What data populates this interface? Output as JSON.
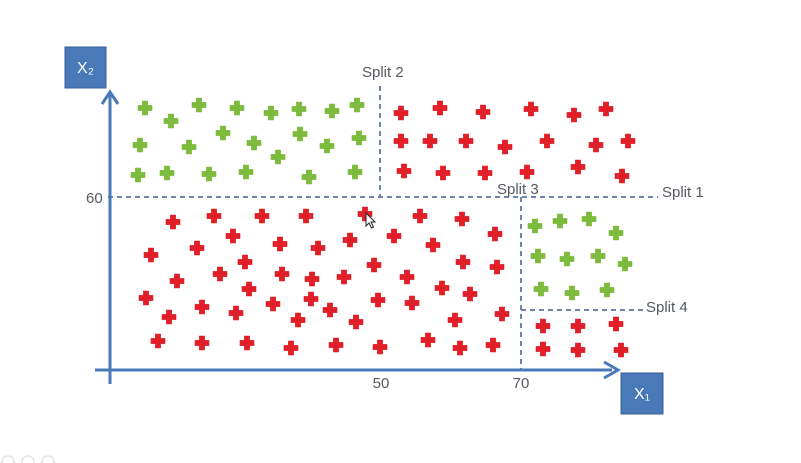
{
  "axes": {
    "x_label": "X₁",
    "y_label": "X₂",
    "x_ticks": [
      "50",
      "70"
    ],
    "y_ticks": [
      "60"
    ]
  },
  "splits": {
    "split1": "Split 1",
    "split2": "Split 2",
    "split3": "Split 3",
    "split4": "Split 4"
  },
  "colors": {
    "positive_class": "#7dbb3c",
    "negative_class": "#e01f28",
    "axis": "#4a79b8",
    "axis_box": "#4a79b8",
    "split_line": "#6f84a8"
  },
  "chart_data": {
    "type": "scatter",
    "x_split_values": [
      50,
      70
    ],
    "y_split_values": [
      60
    ],
    "series": [
      {
        "marker": "plus",
        "color": "#7dbb3c",
        "points": [
          [
            145,
            108
          ],
          [
            199,
            105
          ],
          [
            237,
            108
          ],
          [
            271,
            113
          ],
          [
            299,
            109
          ],
          [
            332,
            111
          ],
          [
            357,
            105
          ],
          [
            171,
            121
          ],
          [
            223,
            133
          ],
          [
            300,
            134
          ],
          [
            327,
            146
          ],
          [
            359,
            138
          ],
          [
            140,
            145
          ],
          [
            189,
            147
          ],
          [
            254,
            143
          ],
          [
            278,
            157
          ],
          [
            138,
            175
          ],
          [
            167,
            173
          ],
          [
            209,
            174
          ],
          [
            246,
            172
          ],
          [
            309,
            177
          ],
          [
            355,
            172
          ],
          [
            535,
            226
          ],
          [
            560,
            221
          ],
          [
            589,
            219
          ],
          [
            616,
            233
          ],
          [
            538,
            256
          ],
          [
            567,
            259
          ],
          [
            598,
            256
          ],
          [
            625,
            264
          ],
          [
            541,
            289
          ],
          [
            572,
            293
          ],
          [
            607,
            290
          ]
        ]
      },
      {
        "marker": "plus",
        "color": "#e01f28",
        "points": [
          [
            401,
            113
          ],
          [
            440,
            108
          ],
          [
            483,
            112
          ],
          [
            531,
            109
          ],
          [
            574,
            115
          ],
          [
            606,
            109
          ],
          [
            401,
            141
          ],
          [
            430,
            141
          ],
          [
            466,
            141
          ],
          [
            505,
            147
          ],
          [
            547,
            141
          ],
          [
            596,
            145
          ],
          [
            628,
            141
          ],
          [
            404,
            171
          ],
          [
            443,
            173
          ],
          [
            485,
            173
          ],
          [
            527,
            172
          ],
          [
            578,
            167
          ],
          [
            622,
            176
          ],
          [
            173,
            222
          ],
          [
            214,
            216
          ],
          [
            262,
            216
          ],
          [
            306,
            216
          ],
          [
            365,
            214
          ],
          [
            420,
            216
          ],
          [
            462,
            219
          ],
          [
            495,
            234
          ],
          [
            233,
            236
          ],
          [
            280,
            244
          ],
          [
            318,
            248
          ],
          [
            350,
            240
          ],
          [
            394,
            236
          ],
          [
            433,
            245
          ],
          [
            151,
            255
          ],
          [
            197,
            248
          ],
          [
            245,
            262
          ],
          [
            374,
            265
          ],
          [
            463,
            262
          ],
          [
            497,
            267
          ],
          [
            177,
            281
          ],
          [
            220,
            274
          ],
          [
            282,
            274
          ],
          [
            312,
            279
          ],
          [
            344,
            277
          ],
          [
            407,
            277
          ],
          [
            442,
            288
          ],
          [
            470,
            294
          ],
          [
            146,
            298
          ],
          [
            202,
            307
          ],
          [
            249,
            289
          ],
          [
            273,
            304
          ],
          [
            311,
            299
          ],
          [
            378,
            300
          ],
          [
            412,
            303
          ],
          [
            502,
            314
          ],
          [
            169,
            317
          ],
          [
            236,
            313
          ],
          [
            298,
            320
          ],
          [
            330,
            310
          ],
          [
            356,
            322
          ],
          [
            455,
            320
          ],
          [
            158,
            341
          ],
          [
            202,
            343
          ],
          [
            247,
            343
          ],
          [
            291,
            348
          ],
          [
            336,
            345
          ],
          [
            380,
            347
          ],
          [
            428,
            340
          ],
          [
            460,
            348
          ],
          [
            493,
            345
          ],
          [
            543,
            326
          ],
          [
            578,
            326
          ],
          [
            616,
            324
          ],
          [
            543,
            349
          ],
          [
            578,
            350
          ],
          [
            621,
            350
          ]
        ]
      }
    ]
  }
}
